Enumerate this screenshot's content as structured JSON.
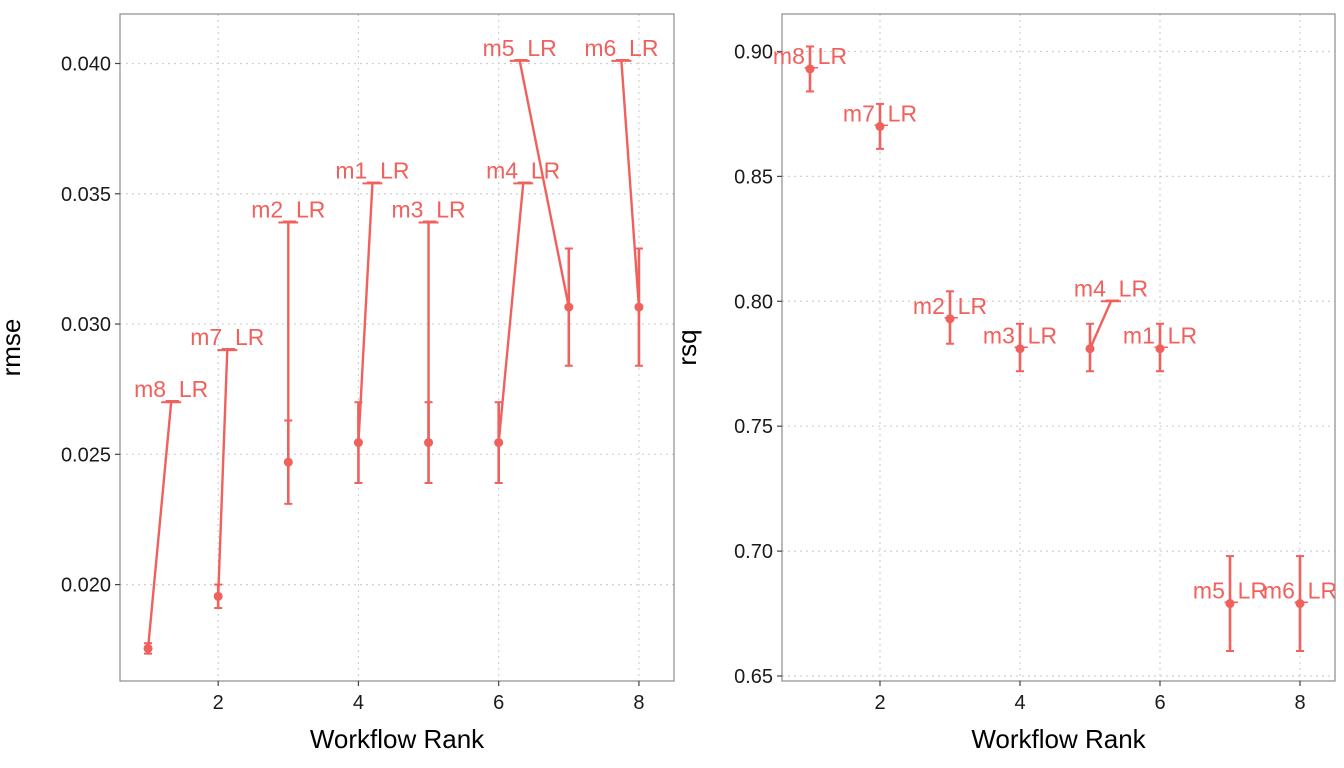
{
  "chart_data": [
    {
      "type": "scatter",
      "xlabel": "Workflow Rank",
      "ylabel": "rmse",
      "xlim": [
        0.6,
        8.5
      ],
      "ylim": [
        0.0163,
        0.0419
      ],
      "xticks": [
        2,
        4,
        6,
        8
      ],
      "yticks": [
        0.02,
        0.025,
        0.03,
        0.035,
        0.04
      ],
      "ytick_labels": [
        "0.020",
        "0.025",
        "0.030",
        "0.035",
        "0.040"
      ],
      "grid": true,
      "color": "#F0605C",
      "points": [
        {
          "rank": 1,
          "label": "m8_LR",
          "mean": 0.01755,
          "lower": 0.01735,
          "upper": 0.01775
        },
        {
          "rank": 2,
          "label": "m7_LR",
          "mean": 0.01955,
          "lower": 0.0191,
          "upper": 0.02
        },
        {
          "rank": 3,
          "label": "m2_LR",
          "mean": 0.0247,
          "lower": 0.0231,
          "upper": 0.0263
        },
        {
          "rank": 4,
          "label": "m1_LR",
          "mean": 0.02545,
          "lower": 0.0239,
          "upper": 0.027
        },
        {
          "rank": 5,
          "label": "m3_LR",
          "mean": 0.02545,
          "lower": 0.0239,
          "upper": 0.027
        },
        {
          "rank": 6,
          "label": "m4_LR",
          "mean": 0.02545,
          "lower": 0.0239,
          "upper": 0.027
        },
        {
          "rank": 7,
          "label": "m5_LR",
          "mean": 0.03065,
          "lower": 0.0284,
          "upper": 0.0329
        },
        {
          "rank": 8,
          "label": "m6_LR",
          "mean": 0.03065,
          "lower": 0.0284,
          "upper": 0.0329
        }
      ],
      "label_anchors": [
        {
          "x": 1.33,
          "y": 0.027
        },
        {
          "x": 2.13,
          "y": 0.029
        },
        {
          "x": 3.0,
          "y": 0.0339
        },
        {
          "x": 4.2,
          "y": 0.0354
        },
        {
          "x": 5.0,
          "y": 0.0339
        },
        {
          "x": 6.35,
          "y": 0.0354
        },
        {
          "x": 6.3,
          "y": 0.0401
        },
        {
          "x": 7.75,
          "y": 0.0401
        }
      ]
    },
    {
      "type": "scatter",
      "xlabel": "Workflow Rank",
      "ylabel": "rsq",
      "xlim": [
        0.6,
        8.5
      ],
      "ylim": [
        0.648,
        0.915
      ],
      "xticks": [
        2,
        4,
        6,
        8
      ],
      "yticks": [
        0.65,
        0.7,
        0.75,
        0.8,
        0.85,
        0.9
      ],
      "ytick_labels": [
        "0.65",
        "0.70",
        "0.75",
        "0.80",
        "0.85",
        "0.90"
      ],
      "grid": true,
      "color": "#F0605C",
      "points": [
        {
          "rank": 1,
          "label": "m8_LR",
          "mean": 0.893,
          "lower": 0.884,
          "upper": 0.902
        },
        {
          "rank": 2,
          "label": "m7_LR",
          "mean": 0.87,
          "lower": 0.861,
          "upper": 0.879
        },
        {
          "rank": 3,
          "label": "m2_LR",
          "mean": 0.793,
          "lower": 0.783,
          "upper": 0.804
        },
        {
          "rank": 4,
          "label": "m3_LR",
          "mean": 0.781,
          "lower": 0.772,
          "upper": 0.791
        },
        {
          "rank": 5,
          "label": "m4_LR",
          "mean": 0.781,
          "lower": 0.772,
          "upper": 0.791
        },
        {
          "rank": 6,
          "label": "m1_LR",
          "mean": 0.781,
          "lower": 0.772,
          "upper": 0.791
        },
        {
          "rank": 7,
          "label": "m5_LR",
          "mean": 0.679,
          "lower": 0.66,
          "upper": 0.698
        },
        {
          "rank": 8,
          "label": "m6_LR",
          "mean": 0.679,
          "lower": 0.66,
          "upper": 0.698
        }
      ],
      "label_anchors": [
        {
          "x": 1.0,
          "y": 0.893
        },
        {
          "x": 2.0,
          "y": 0.87
        },
        {
          "x": 3.0,
          "y": 0.793
        },
        {
          "x": 4.0,
          "y": 0.781
        },
        {
          "x": 5.3,
          "y": 0.8
        },
        {
          "x": 6.0,
          "y": 0.781
        },
        {
          "x": 7.0,
          "y": 0.679
        },
        {
          "x": 8.0,
          "y": 0.679
        }
      ]
    }
  ]
}
